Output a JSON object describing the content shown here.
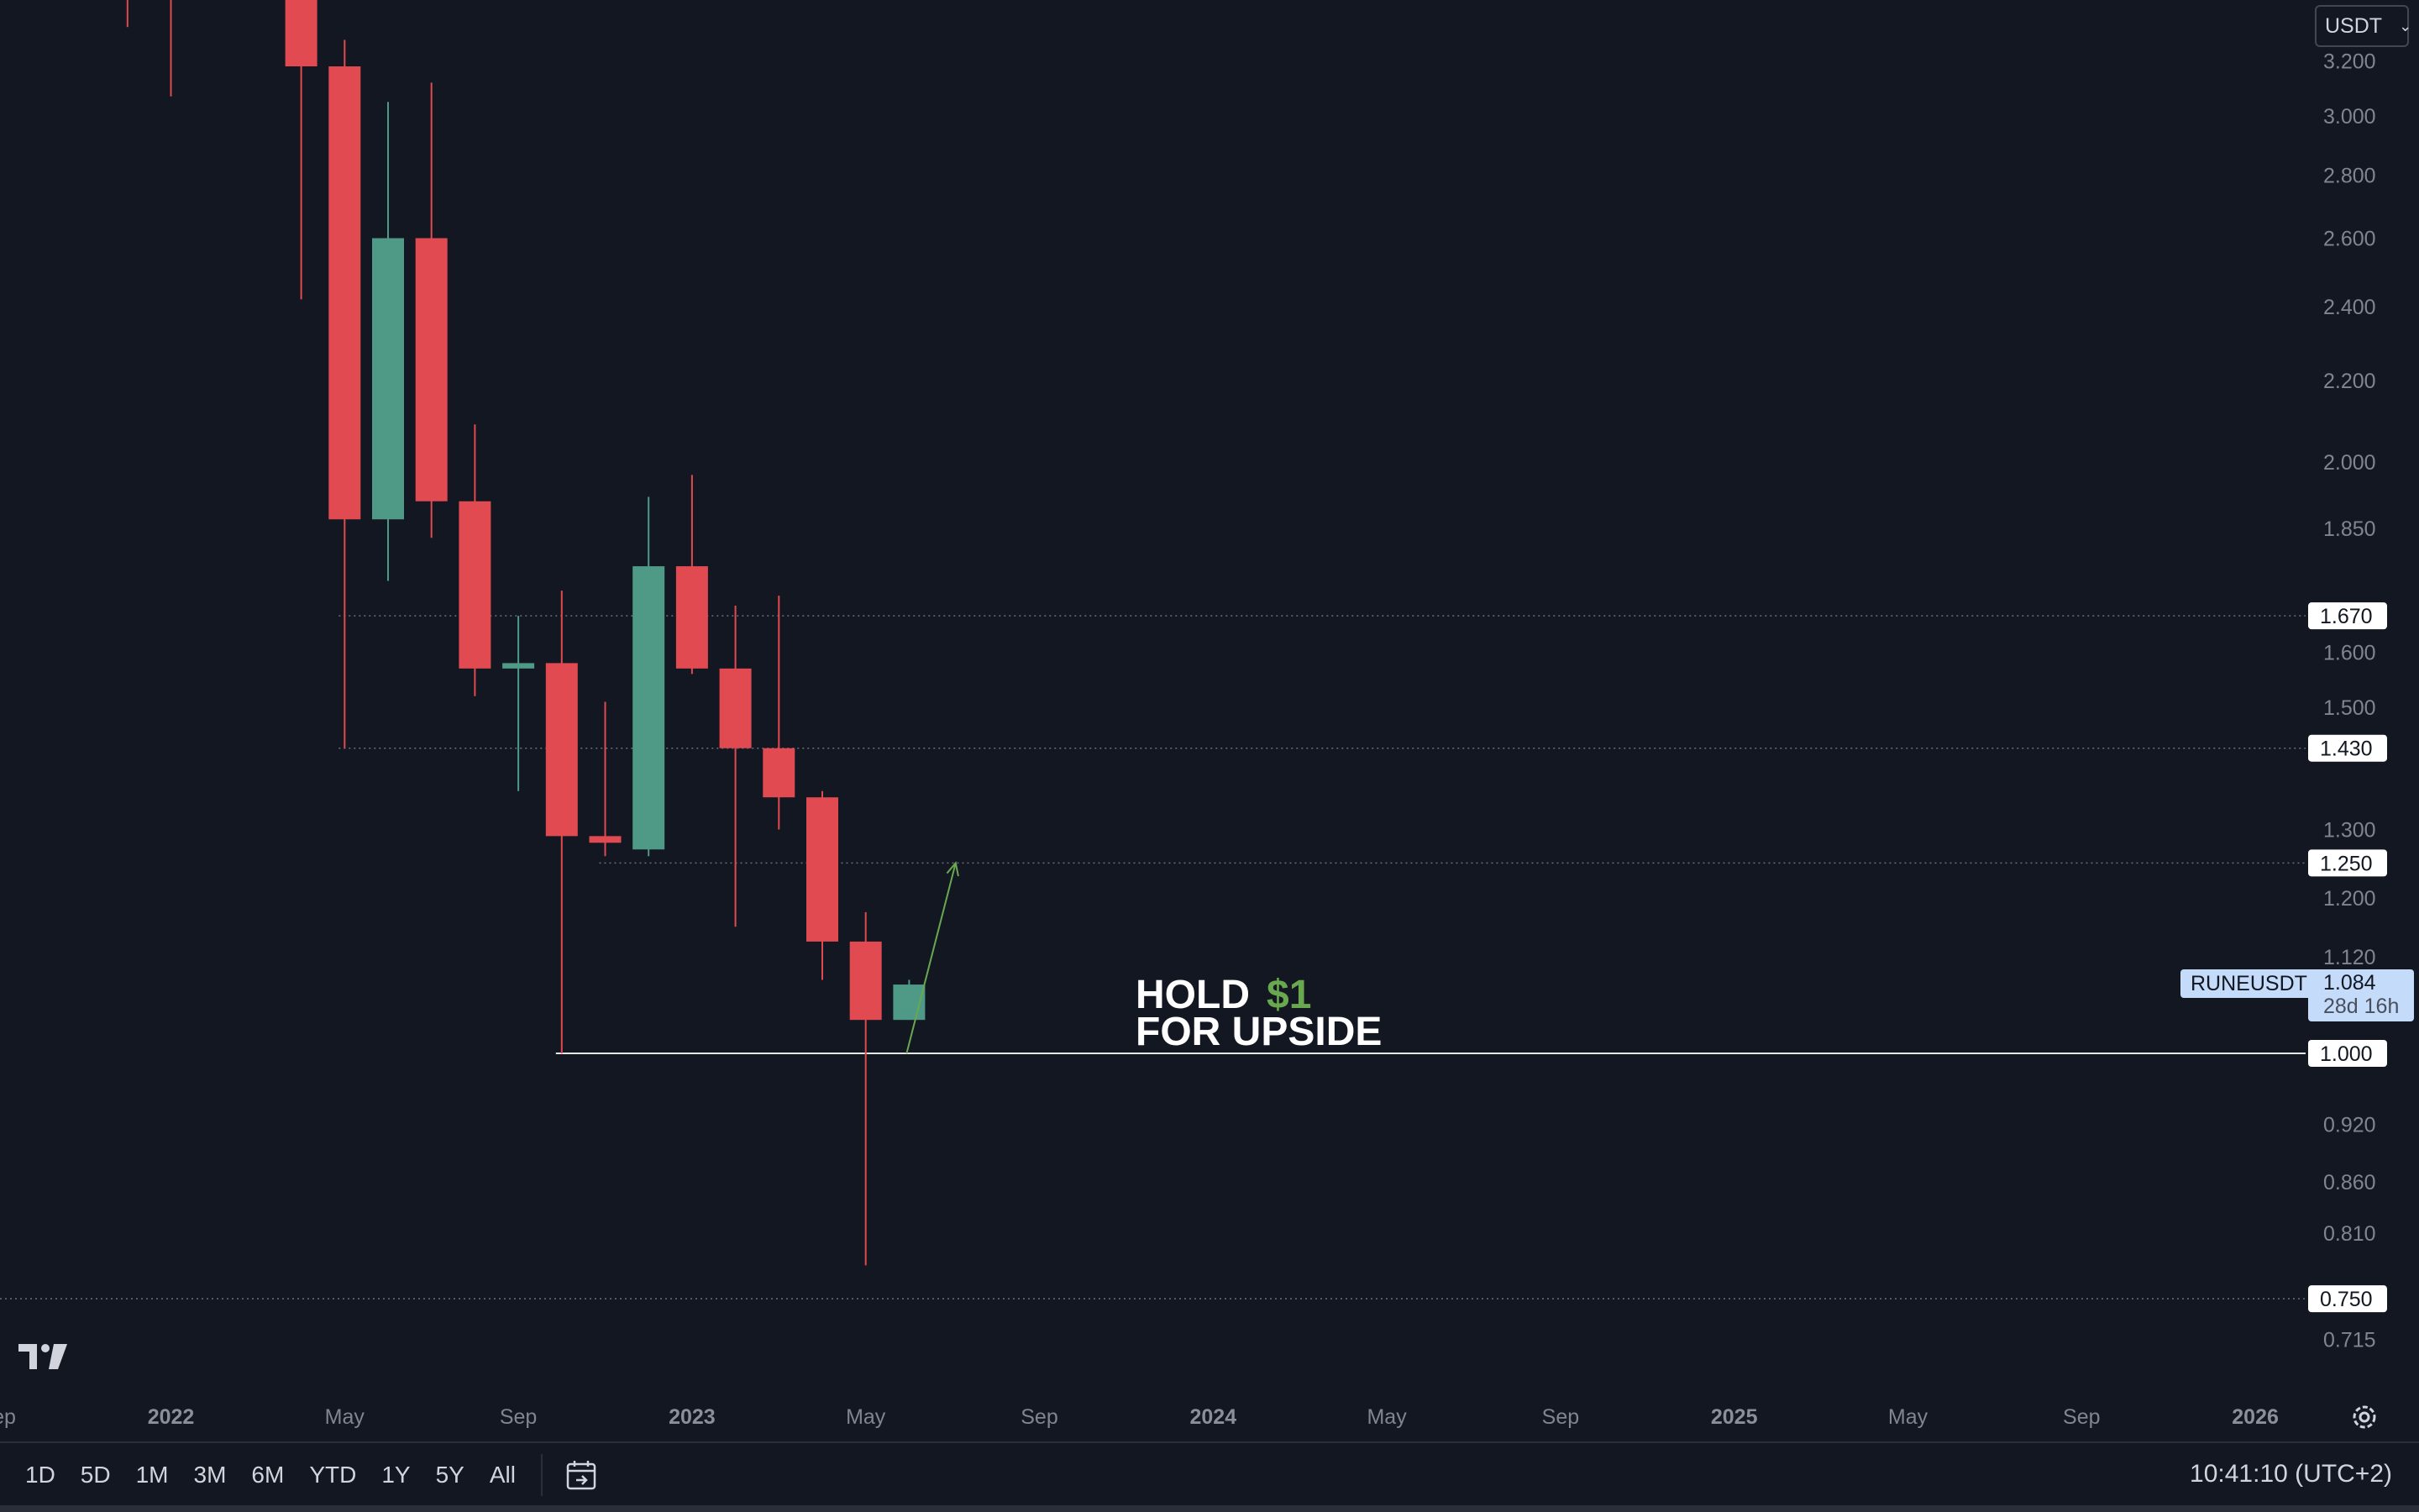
{
  "chart_data": {
    "type": "candlestick",
    "symbol": "RUNEUSDT",
    "currency": "USDT",
    "interval": "monthly",
    "y_axis_scale": "log",
    "ylim": [
      0.69,
      3.4
    ],
    "y_ticks": [
      "3.200",
      "3.000",
      "2.800",
      "2.600",
      "2.400",
      "2.200",
      "2.000",
      "1.850",
      "1.600",
      "1.500",
      "1.300",
      "1.200",
      "1.120",
      "0.920",
      "0.860",
      "0.810",
      "0.715"
    ],
    "x_ticks": [
      {
        "label": "Sep",
        "date": "2021-09"
      },
      {
        "label": "2022",
        "date": "2022-01",
        "year": true
      },
      {
        "label": "May",
        "date": "2022-05"
      },
      {
        "label": "Sep",
        "date": "2022-09"
      },
      {
        "label": "2023",
        "date": "2023-01",
        "year": true
      },
      {
        "label": "May",
        "date": "2023-05"
      },
      {
        "label": "Sep",
        "date": "2023-09"
      },
      {
        "label": "2024",
        "date": "2024-01",
        "year": true
      },
      {
        "label": "May",
        "date": "2024-05"
      },
      {
        "label": "Sep",
        "date": "2024-09"
      },
      {
        "label": "2025",
        "date": "2025-01",
        "year": true
      },
      {
        "label": "May",
        "date": "2025-05"
      },
      {
        "label": "Sep",
        "date": "2025-09"
      },
      {
        "label": "2026",
        "date": "2026-01",
        "year": true
      }
    ],
    "candles": [
      {
        "date": "2021-12",
        "open": null,
        "high": 3.45,
        "low": 3.33,
        "close": null
      },
      {
        "date": "2022-01",
        "open": null,
        "high": 3.45,
        "low": 3.07,
        "close": null
      },
      {
        "date": "2022-04",
        "open": 3.45,
        "high": 3.45,
        "low": 2.42,
        "close": 3.18
      },
      {
        "date": "2022-05",
        "open": 3.18,
        "high": 3.28,
        "low": 1.43,
        "close": 1.87
      },
      {
        "date": "2022-06",
        "open": 1.87,
        "high": 3.05,
        "low": 1.74,
        "close": 2.6
      },
      {
        "date": "2022-07",
        "open": 2.6,
        "high": 3.12,
        "low": 1.83,
        "close": 1.91
      },
      {
        "date": "2022-08",
        "open": 1.91,
        "high": 2.09,
        "low": 1.52,
        "close": 1.57
      },
      {
        "date": "2022-09",
        "open": 1.57,
        "high": 1.67,
        "low": 1.36,
        "close": 1.58
      },
      {
        "date": "2022-10",
        "open": 1.58,
        "high": 1.72,
        "low": 1.0,
        "close": 1.29
      },
      {
        "date": "2022-11",
        "open": 1.29,
        "high": 1.51,
        "low": 1.26,
        "close": 1.28
      },
      {
        "date": "2022-12",
        "open": 1.27,
        "high": 1.92,
        "low": 1.26,
        "close": 1.77
      },
      {
        "date": "2023-01",
        "open": 1.77,
        "high": 1.97,
        "low": 1.56,
        "close": 1.57
      },
      {
        "date": "2023-02",
        "open": 1.57,
        "high": 1.69,
        "low": 1.16,
        "close": 1.43
      },
      {
        "date": "2023-03",
        "open": 1.43,
        "high": 1.71,
        "low": 1.3,
        "close": 1.35
      },
      {
        "date": "2023-04",
        "open": 1.35,
        "high": 1.36,
        "low": 1.09,
        "close": 1.14
      },
      {
        "date": "2023-05",
        "open": 1.14,
        "high": 1.18,
        "low": 0.78,
        "close": 1.04
      },
      {
        "date": "2023-06",
        "open": 1.04,
        "high": 1.09,
        "low": 1.04,
        "close": 1.084
      }
    ],
    "up_color": "#4e9a86",
    "down_color": "#e04a50",
    "horizontal_levels": [
      {
        "price": 1.67,
        "label": "1.670",
        "style": "dotted",
        "from": "2022-05"
      },
      {
        "price": 1.43,
        "label": "1.430",
        "style": "dotted",
        "from": "2022-05"
      },
      {
        "price": 1.25,
        "label": "1.250",
        "style": "dotted",
        "from": "2022-11"
      },
      {
        "price": 1.0,
        "label": "1.000",
        "style": "solid",
        "from": "2022-10"
      },
      {
        "price": 0.75,
        "label": "0.750",
        "style": "dotted",
        "from": "2021-09"
      }
    ],
    "last_price": {
      "value": "1.084",
      "countdown": "28d 16h",
      "symbol": "RUNEUSDT"
    },
    "annotation": {
      "line1_prefix": "HOLD",
      "line1_accent": "$1",
      "line2": "FOR UPSIDE",
      "accent_color": "#6aa84f",
      "arrow_from": {
        "date": "2023-06",
        "price": 1.0
      },
      "arrow_to": {
        "date": "2023-08",
        "price": 1.25
      }
    }
  },
  "toolbar": {
    "currency_label": "USDT",
    "ranges": [
      "1D",
      "5D",
      "1M",
      "3M",
      "6M",
      "YTD",
      "1Y",
      "5Y",
      "All"
    ],
    "clock": "10:41:10 (UTC+2)"
  },
  "icons": {
    "logo": "tradingview-logo-icon",
    "settings": "gear-icon",
    "date_range": "calendar-goto-icon",
    "dropdown": "chevron-down-icon"
  }
}
